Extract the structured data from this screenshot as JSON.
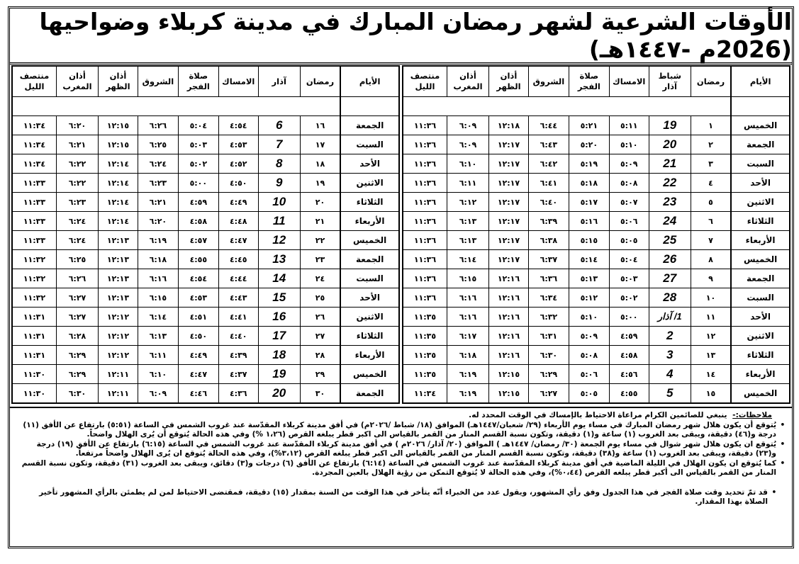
{
  "title": "الأوقات الشرعية لشهر رمضان المبارك في مدينة كربلاء وضواحيها (2026م -١٤٤٧هـ)",
  "right_table": {
    "headers": [
      "الأيام",
      "رمضان",
      "شباط\nآذار",
      "الامساك",
      "صلاة\nالفجر",
      "الشروق",
      "أذان\nالظهر",
      "أذان\nالمغرب",
      "منتصف\nالليل"
    ],
    "rows": [
      [
        "الخميس",
        "١",
        "19",
        "٥:١١",
        "٥:٢١",
        "٦:٤٤",
        "١٢:١٨",
        "٦:٠٩",
        "١١:٣٦"
      ],
      [
        "الجمعة",
        "٢",
        "20",
        "٥:١٠",
        "٥:٢٠",
        "٦:٤٣",
        "١٢:١٧",
        "٦:٠٩",
        "١١:٣٦"
      ],
      [
        "السبت",
        "٣",
        "21",
        "٥:٠٩",
        "٥:١٩",
        "٦:٤٢",
        "١٢:١٧",
        "٦:١٠",
        "١١:٣٦"
      ],
      [
        "الأحد",
        "٤",
        "22",
        "٥:٠٨",
        "٥:١٨",
        "٦:٤١",
        "١٢:١٧",
        "٦:١١",
        "١١:٣٦"
      ],
      [
        "الاثنين",
        "٥",
        "23",
        "٥:٠٧",
        "٥:١٧",
        "٦:٤٠",
        "١٢:١٧",
        "٦:١٢",
        "١١:٣٦"
      ],
      [
        "الثلاثاء",
        "٦",
        "24",
        "٥:٠٦",
        "٥:١٦",
        "٦:٣٩",
        "١٢:١٧",
        "٦:١٣",
        "١١:٣٦"
      ],
      [
        "الأربعاء",
        "٧",
        "25",
        "٥:٠٥",
        "٥:١٥",
        "٦:٣٨",
        "١٢:١٧",
        "٦:١٣",
        "١١:٣٦"
      ],
      [
        "الخميس",
        "٨",
        "26",
        "٥:٠٤",
        "٥:١٤",
        "٦:٣٧",
        "١٢:١٧",
        "٦:١٤",
        "١١:٣٦"
      ],
      [
        "الجمعة",
        "٩",
        "27",
        "٥:٠٣",
        "٥:١٣",
        "٦:٣٦",
        "١٢:١٦",
        "٦:١٥",
        "١١:٣٦"
      ],
      [
        "السبت",
        "١٠",
        "28",
        "٥:٠٢",
        "٥:١٢",
        "٦:٣٤",
        "١٢:١٦",
        "٦:١٦",
        "١١:٣٦"
      ],
      [
        "الأحد",
        "١١",
        "1/ آذار",
        "٥:٠٠",
        "٥:١٠",
        "٦:٣٢",
        "١٢:١٦",
        "٦:١٦",
        "١١:٣٥"
      ],
      [
        "الاثنين",
        "١٢",
        "2",
        "٤:٥٩",
        "٥:٠٩",
        "٦:٣١",
        "١٢:١٦",
        "٦:١٧",
        "١١:٣٥"
      ],
      [
        "الثلاثاء",
        "١٣",
        "3",
        "٤:٥٨",
        "٥:٠٨",
        "٦:٣٠",
        "١٢:١٦",
        "٦:١٨",
        "١١:٣٥"
      ],
      [
        "الأربعاء",
        "١٤",
        "4",
        "٤:٥٦",
        "٥:٠٦",
        "٦:٢٩",
        "١٢:١٥",
        "٦:١٩",
        "١١:٣٥"
      ],
      [
        "الخميس",
        "١٥",
        "5",
        "٤:٥٥",
        "٥:٠٥",
        "٦:٢٧",
        "١٢:١٥",
        "٦:١٩",
        "١١:٣٤"
      ]
    ]
  },
  "left_table": {
    "headers": [
      "الأيام",
      "رمضان",
      "آذار",
      "الامساك",
      "صلاة\nالفجر",
      "الشروق",
      "أذان\nالظهر",
      "أذان\nالمغرب",
      "منتصف\nالليل"
    ],
    "rows": [
      [
        "الجمعة",
        "١٦",
        "6",
        "٤:٥٤",
        "٥:٠٤",
        "٦:٢٦",
        "١٢:١٥",
        "٦:٢٠",
        "١١:٣٤"
      ],
      [
        "السبت",
        "١٧",
        "7",
        "٤:٥٣",
        "٥:٠٣",
        "٦:٢٥",
        "١٢:١٥",
        "٦:٢١",
        "١١:٣٤"
      ],
      [
        "الأحد",
        "١٨",
        "8",
        "٤:٥٢",
        "٥:٠٢",
        "٦:٢٤",
        "١٢:١٤",
        "٦:٢٢",
        "١١:٣٤"
      ],
      [
        "الاثنين",
        "١٩",
        "9",
        "٤:٥٠",
        "٥:٠٠",
        "٦:٢٣",
        "١٢:١٤",
        "٦:٢٢",
        "١١:٣٣"
      ],
      [
        "الثلاثاء",
        "٢٠",
        "10",
        "٤:٤٩",
        "٤:٥٩",
        "٦:٢١",
        "١٢:١٤",
        "٦:٢٣",
        "١١:٣٣"
      ],
      [
        "الأربعاء",
        "٢١",
        "11",
        "٤:٤٨",
        "٤:٥٨",
        "٦:٢٠",
        "١٢:١٤",
        "٦:٢٤",
        "١١:٣٣"
      ],
      [
        "الخميس",
        "٢٢",
        "12",
        "٤:٤٧",
        "٤:٥٧",
        "٦:١٩",
        "١٢:١٣",
        "٦:٢٤",
        "١١:٣٣"
      ],
      [
        "الجمعة",
        "٢٣",
        "13",
        "٤:٤٥",
        "٤:٥٥",
        "٦:١٨",
        "١٢:١٣",
        "٦:٢٥",
        "١١:٣٢"
      ],
      [
        "السبت",
        "٢٤",
        "14",
        "٤:٤٤",
        "٤:٥٤",
        "٦:١٦",
        "١٢:١٣",
        "٦:٢٦",
        "١١:٣٢"
      ],
      [
        "الأحد",
        "٢٥",
        "15",
        "٤:٤٣",
        "٤:٥٣",
        "٦:١٥",
        "١٢:١٣",
        "٦:٢٧",
        "١١:٣٢"
      ],
      [
        "الاثنين",
        "٢٦",
        "16",
        "٤:٤١",
        "٤:٥١",
        "٦:١٤",
        "١٢:١٢",
        "٦:٢٧",
        "١١:٣١"
      ],
      [
        "الثلاثاء",
        "٢٧",
        "17",
        "٤:٤٠",
        "٤:٥٠",
        "٦:١٣",
        "١٢:١٢",
        "٦:٢٨",
        "١١:٣١"
      ],
      [
        "الأربعاء",
        "٢٨",
        "18",
        "٤:٣٩",
        "٤:٤٩",
        "٦:١١",
        "١٢:١٢",
        "٦:٢٩",
        "١١:٣١"
      ],
      [
        "الخميس",
        "٢٩",
        "19",
        "٤:٣٧",
        "٤:٤٧",
        "٦:١٠",
        "١٢:١١",
        "٦:٢٩",
        "١١:٣٠"
      ],
      [
        "الجمعة",
        "٣٠",
        "20",
        "٤:٣٦",
        "٤:٤٦",
        "٦:٠٩",
        "١٢:١١",
        "٦:٣٠",
        "١١:٣٠"
      ]
    ]
  },
  "notes": {
    "label": "ملاحظات:-",
    "intro": "ينبغي للصائمين الكرام مراعاة الاحتياط بالإمساك في الوقت المحدد له.",
    "items": [
      "يُتوقع أن يكون هلال شهر رمضان المبارك في مساء يوم الأربعاء (٢٩/ شعبان/١٤٤٧هـ) الموافق (١٨/ شباط /٢٠٢٦م) في أفق مدينة كربلاء المقدّسة عند غروب الشمس في الساعة (٥:٥١) بارتفاع عن الأفق (١١) درجة و(٤٦) دقيقة، ويبقى بعد الغروب (١) ساعة و(١) دقيقة، وتكون نسبة القسم المنار من القمر بالقياس الى اكبر قطر يبلغه القرص (١،٢٦ %) وفي هذه الحالة يُتوقع أن يُرى الهلال واضحاً.",
      "يُتوقع ان يكون هلال شهر شوال في مساء يوم الجمعة (٣٠/ رمضان/ ١٤٤٧هـ ) الموافق (٢٠/ آذار/ ٢٠٢٦م ) في أفق مدينة كربلاء المقدّسة عند غروب الشمس في الساعة (٦:١٥) بارتفاع عن الأفق (١٩) درجة و(٢٣) دقيقة، ويبقى بعد الغروب (١) ساعة و(٣٨) دقيقة، وتكون نسبة القسم المنار من القمر بالقياس الى اكبر قطر يبلغه القرص (٣،١٢%)، وفي هذه الحالة يُتوقع ان يُرى الهلال واضحاً مرتفعاً.",
      "كما يُتوقع ان يكون الهلال في الليلة الماضية في أفق مدينة كربلاء المقدّسة عند غروب الشمس في الساعة (٦:١٤) بارتفاع عن الأفق (٦) درجات و(٣) دقائق، ويبقى بعد الغروب (٣١) دقيقة، وتكون نسبة القسم المنار من القمر بالقياس الى أكبر قطر يبلغه القرص (٠،٤٤%)، وفي هذه الحالة لا يُتوقع التمكن من رؤية الهلال بالعين المجردة.",
      "قد تمّ تحديد وقت صلاة الفجر في هذا الجدول وفق رأي المشهور، ويقول عدد من الخبراء أنّه يتأخر في هذا الوقت من السنة بمقدار (١٥) دقيقة، فمقتضى الاحتياط لمن لم يطمئن بالرأي المشهور تأخير الصلاة بهذا المقدار."
    ]
  }
}
